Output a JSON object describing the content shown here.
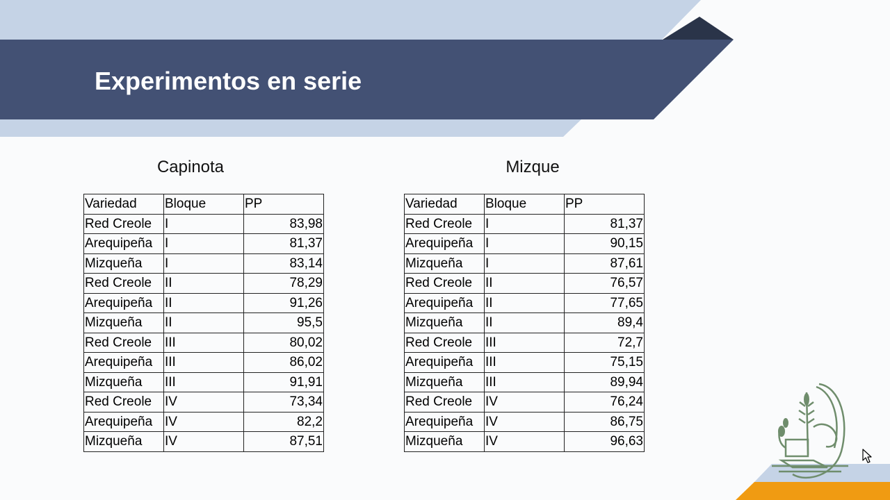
{
  "slide": {
    "title": "Experimentos en serie"
  },
  "colors": {
    "banner": "#435174",
    "light_band": "#c5d3e6",
    "dark_triangle": "#2a3449",
    "accent_orange": "#f09b12",
    "logo_green": "#6f8d6c"
  },
  "icons": [
    "logo-icon",
    "cursor-icon"
  ],
  "tables": [
    {
      "caption": "Capinota",
      "headers": [
        "Variedad",
        "Bloque",
        "PP"
      ],
      "rows": [
        [
          "Red Creole",
          "I",
          "83,98"
        ],
        [
          "Arequipeña",
          "I",
          "81,37"
        ],
        [
          "Mizqueña",
          "I",
          "83,14"
        ],
        [
          "Red Creole",
          "II",
          "78,29"
        ],
        [
          "Arequipeña",
          "II",
          "91,26"
        ],
        [
          "Mizqueña",
          "II",
          "95,5"
        ],
        [
          "Red Creole",
          "III",
          "80,02"
        ],
        [
          "Arequipeña",
          "III",
          "86,02"
        ],
        [
          "Mizqueña",
          "III",
          "91,91"
        ],
        [
          "Red Creole",
          "IV",
          "73,34"
        ],
        [
          "Arequipeña",
          "IV",
          "82,2"
        ],
        [
          "Mizqueña",
          "IV",
          "87,51"
        ]
      ]
    },
    {
      "caption": "Mizque",
      "headers": [
        "Variedad",
        "Bloque",
        "PP"
      ],
      "rows": [
        [
          "Red Creole",
          "I",
          "81,37"
        ],
        [
          "Arequipeña",
          "I",
          "90,15"
        ],
        [
          "Mizqueña",
          "I",
          "87,61"
        ],
        [
          "Red Creole",
          "II",
          "76,57"
        ],
        [
          "Arequipeña",
          "II",
          "77,65"
        ],
        [
          "Mizqueña",
          "II",
          "89,4"
        ],
        [
          "Red Creole",
          "III",
          "72,7"
        ],
        [
          "Arequipeña",
          "III",
          "75,15"
        ],
        [
          "Mizqueña",
          "III",
          "89,94"
        ],
        [
          "Red Creole",
          "IV",
          "76,24"
        ],
        [
          "Arequipeña",
          "IV",
          "86,75"
        ],
        [
          "Mizqueña",
          "IV",
          "96,63"
        ]
      ]
    }
  ]
}
